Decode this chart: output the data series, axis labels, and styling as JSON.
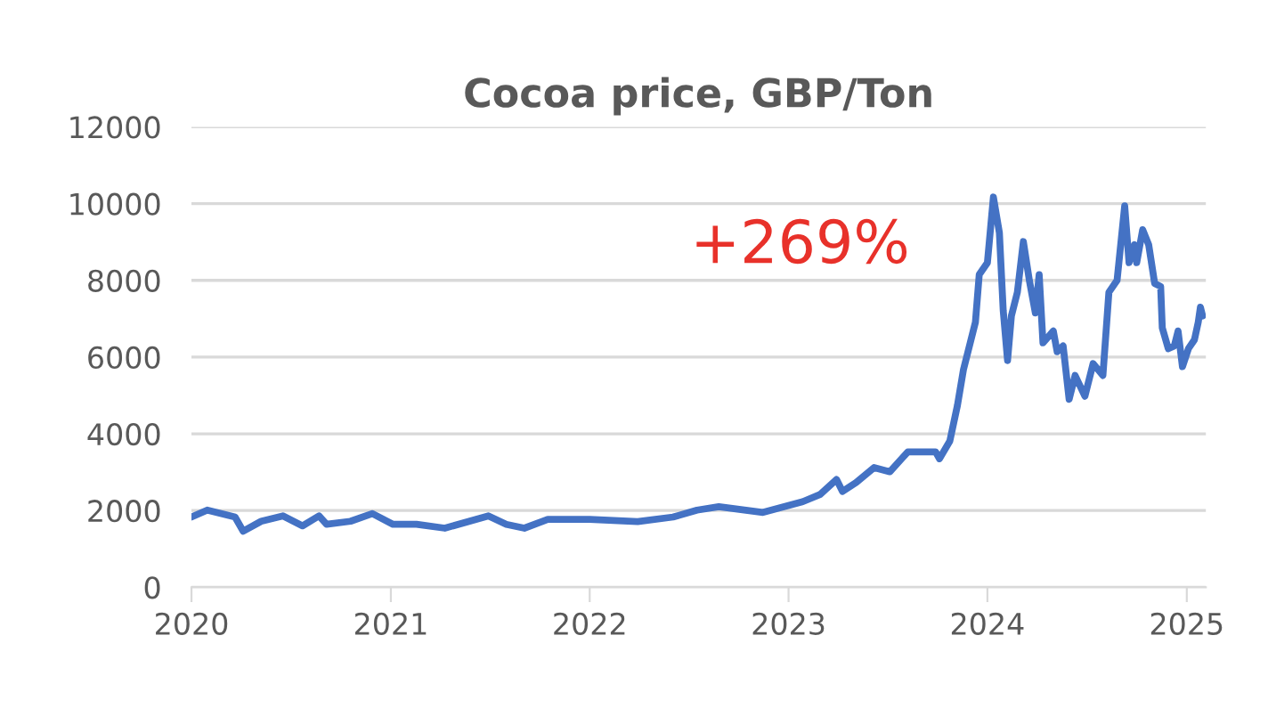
{
  "chart_data": {
    "type": "line",
    "title": "Cocoa price, GBP/Ton",
    "annotations": [
      "+269%"
    ],
    "x": [
      "2020-01-01",
      "2020-01-30",
      "2020-03-21",
      "2020-04-05",
      "2020-05-08",
      "2020-06-17",
      "2020-07-23",
      "2020-08-22",
      "2020-09-05",
      "2020-10-19",
      "2020-11-28",
      "2021-01-05",
      "2021-02-17",
      "2021-04-10",
      "2021-06-29",
      "2021-08-01",
      "2021-09-03",
      "2021-10-16",
      "2022-01-01",
      "2022-03-30",
      "2022-06-03",
      "2022-07-17",
      "2022-08-26",
      "2022-11-15",
      "2023-01-27",
      "2023-02-28",
      "2023-03-30",
      "2023-04-10",
      "2023-05-05",
      "2023-06-07",
      "2023-07-06",
      "2023-08-08",
      "2023-09-28",
      "2023-10-05",
      "2023-10-24",
      "2023-11-07",
      "2023-11-18",
      "2023-12-10",
      "2023-12-17",
      "2024-01-01",
      "2024-01-12",
      "2024-01-23",
      "2024-01-30",
      "2024-02-07",
      "2024-02-14",
      "2024-02-25",
      "2024-03-07",
      "2024-03-18",
      "2024-03-29",
      "2024-04-05",
      "2024-04-12",
      "2024-05-01",
      "2024-05-08",
      "2024-05-19",
      "2024-05-30",
      "2024-06-10",
      "2024-06-28",
      "2024-07-13",
      "2024-07-31",
      "2024-08-11",
      "2024-08-26",
      "2024-09-09",
      "2024-09-17",
      "2024-09-27",
      "2024-10-01",
      "2024-10-12",
      "2024-10-23",
      "2024-11-03",
      "2024-11-14",
      "2024-11-17",
      "2024-11-28",
      "2024-12-09",
      "2024-12-16",
      "2024-12-24",
      "2025-01-04",
      "2025-01-15",
      "2025-01-22",
      "2025-01-26",
      "2025-01-30"
    ],
    "series": [
      {
        "color": "#4472c4",
        "values": [
          1830,
          2010,
          1830,
          1460,
          1720,
          1860,
          1600,
          1860,
          1640,
          1720,
          1920,
          1640,
          1640,
          1540,
          1860,
          1640,
          1540,
          1770,
          1770,
          1710,
          1830,
          2010,
          2100,
          1950,
          2230,
          2420,
          2810,
          2500,
          2730,
          3120,
          3010,
          3530,
          3530,
          3350,
          3810,
          4740,
          5670,
          6910,
          8150,
          8460,
          10170,
          9240,
          7220,
          5910,
          7070,
          7690,
          9010,
          8000,
          7150,
          8150,
          6370,
          6680,
          6140,
          6290,
          4900,
          5520,
          4980,
          5830,
          5520,
          7690,
          8000,
          9940,
          8460,
          8930,
          8460,
          9320,
          8930,
          7920,
          7840,
          6760,
          6220,
          6290,
          6680,
          5750,
          6220,
          6450,
          6910,
          7300,
          7070
        ]
      }
    ],
    "xlim": [
      "2020-01-01",
      "2025-02-05"
    ],
    "xticks": [
      {
        "value": "2020-01-01",
        "label": "2020"
      },
      {
        "value": "2021-01-01",
        "label": "2021"
      },
      {
        "value": "2022-01-01",
        "label": "2022"
      },
      {
        "value": "2023-01-01",
        "label": "2023"
      },
      {
        "value": "2024-01-01",
        "label": "2024"
      },
      {
        "value": "2025-01-01",
        "label": "2025"
      }
    ],
    "ylim": [
      0,
      12000
    ],
    "yticks": [
      0,
      2000,
      4000,
      6000,
      8000,
      10000,
      12000
    ],
    "grid": "y",
    "legend": false
  }
}
